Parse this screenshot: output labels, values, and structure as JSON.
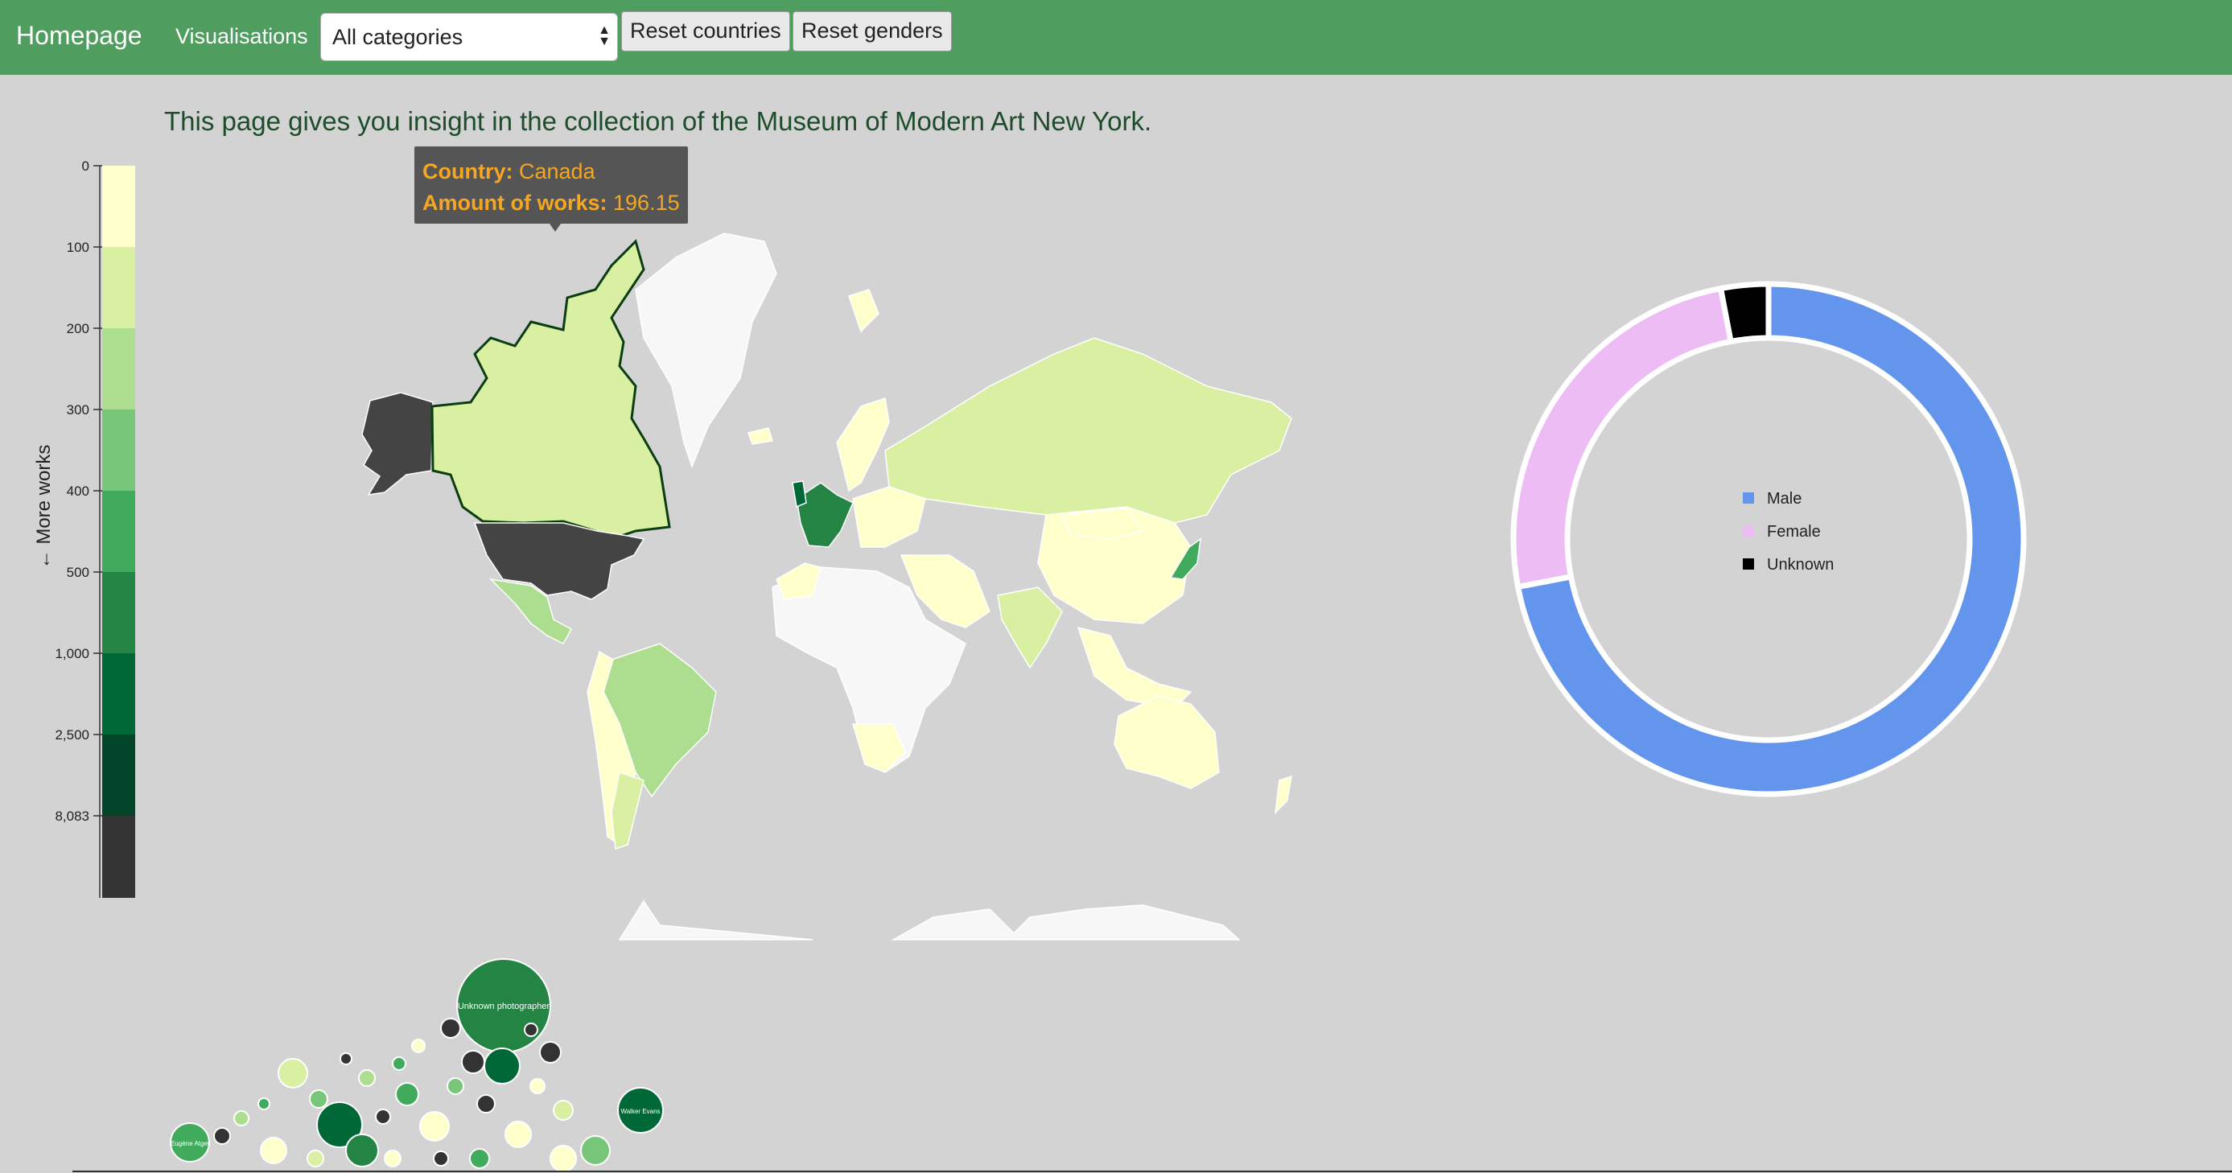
{
  "nav": {
    "brand": "Homepage",
    "link": "Visualisations",
    "category_select": "All categories",
    "reset_countries": "Reset countries",
    "reset_genders": "Reset genders"
  },
  "intro": "This page gives you insight in the collection of the Museum of Modern Art New York.",
  "tooltip": {
    "country_label": "Country:",
    "country_value": "Canada",
    "works_label": "Amount of works:",
    "works_value": "196.15"
  },
  "colors": {
    "nav": "#4f9e5f",
    "background": "#d3d3d3",
    "male": "#6495ed",
    "female": "#eebcf5",
    "unknown": "#000000",
    "scale": [
      "#ffffcc",
      "#d9f0a3",
      "#addd8e",
      "#78c679",
      "#41ab5d",
      "#238443",
      "#006837",
      "#004529",
      "#333333"
    ]
  },
  "color_legend": {
    "axis_label": "← More works",
    "ticks": [
      "0",
      "100",
      "200",
      "300",
      "400",
      "500",
      "1,000",
      "2,500",
      "8,083"
    ]
  },
  "chart_data": {
    "type": "pie",
    "labels": [
      "Male",
      "Female",
      "Unknown"
    ],
    "values": [
      0.72,
      0.25,
      0.03
    ],
    "legend": "center"
  },
  "map": {
    "selected_country": "Canada"
  },
  "bubbles": {
    "labels": [
      "Unknown photographer",
      "Walker Evans",
      "Eugène Atget"
    ]
  }
}
